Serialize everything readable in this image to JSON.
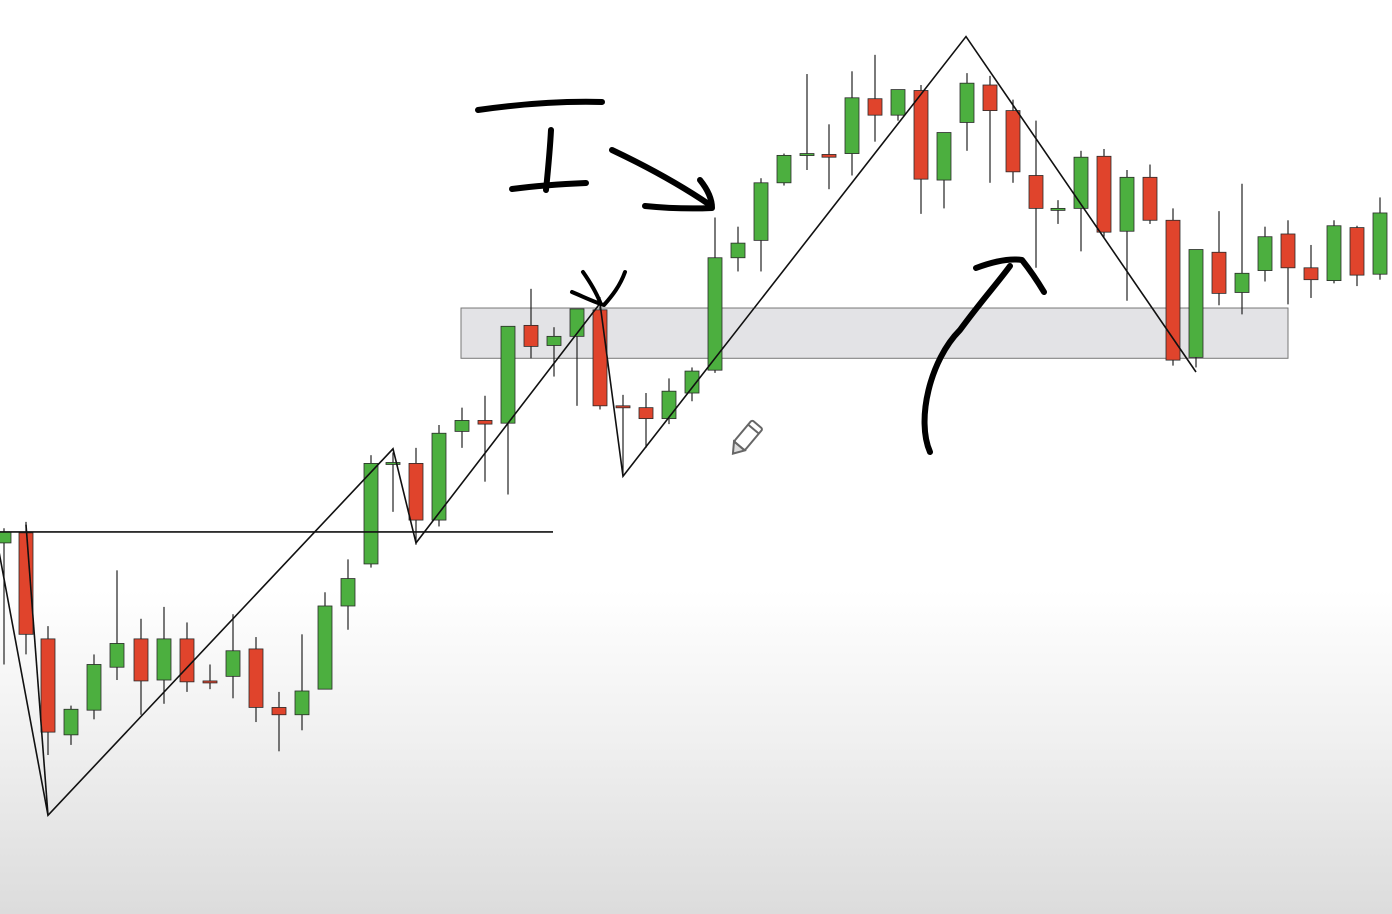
{
  "chart_data": {
    "type": "candlestick",
    "title": "",
    "xlabel": "",
    "ylabel": "",
    "price_scale_visible": false,
    "grid": false,
    "legend": "none",
    "ylim": [
      0,
      100
    ],
    "colors": {
      "bullish": "#4caf3f",
      "bearish": "#e0442c",
      "wick": "#222222",
      "zone_fill": "#e3e3e6",
      "line": "#111111",
      "ink": "#000000"
    },
    "candles": [
      {
        "x": 4,
        "o": 40.6,
        "h": 42.2,
        "l": 27.3,
        "c": 41.8
      },
      {
        "x": 26,
        "o": 41.7,
        "h": 42.9,
        "l": 28.4,
        "c": 30.6
      },
      {
        "x": 48,
        "o": 30.1,
        "h": 31.5,
        "l": 17.4,
        "c": 19.9
      },
      {
        "x": 71,
        "o": 19.6,
        "h": 22.8,
        "l": 18.5,
        "c": 22.4
      },
      {
        "x": 94,
        "o": 22.3,
        "h": 28.4,
        "l": 21.3,
        "c": 27.3
      },
      {
        "x": 117,
        "o": 27.0,
        "h": 37.6,
        "l": 25.6,
        "c": 29.6
      },
      {
        "x": 141,
        "o": 30.1,
        "h": 32.3,
        "l": 21.8,
        "c": 25.5
      },
      {
        "x": 164,
        "o": 25.6,
        "h": 33.6,
        "l": 23.0,
        "c": 30.1
      },
      {
        "x": 187,
        "o": 30.1,
        "h": 31.9,
        "l": 24.3,
        "c": 25.4
      },
      {
        "x": 210,
        "o": 25.5,
        "h": 27.3,
        "l": 24.6,
        "c": 25.3
      },
      {
        "x": 233,
        "o": 26.0,
        "h": 32.8,
        "l": 23.6,
        "c": 28.8
      },
      {
        "x": 256,
        "o": 29.0,
        "h": 30.3,
        "l": 21.0,
        "c": 22.6
      },
      {
        "x": 279,
        "o": 22.6,
        "h": 24.3,
        "l": 17.8,
        "c": 21.8
      },
      {
        "x": 302,
        "o": 21.8,
        "h": 30.6,
        "l": 20.1,
        "c": 24.4
      },
      {
        "x": 325,
        "o": 24.6,
        "h": 35.2,
        "l": 24.6,
        "c": 33.7
      },
      {
        "x": 348,
        "o": 33.7,
        "h": 38.8,
        "l": 31.1,
        "c": 36.7
      },
      {
        "x": 371,
        "o": 38.3,
        "h": 50.2,
        "l": 37.9,
        "c": 49.3
      },
      {
        "x": 393,
        "o": 49.2,
        "h": 50.5,
        "l": 44.0,
        "c": 49.4
      },
      {
        "x": 416,
        "o": 49.3,
        "h": 51.0,
        "l": 40.4,
        "c": 43.1
      },
      {
        "x": 439,
        "o": 43.1,
        "h": 53.5,
        "l": 42.4,
        "c": 52.6
      },
      {
        "x": 462,
        "o": 52.8,
        "h": 55.4,
        "l": 51.0,
        "c": 54.0
      },
      {
        "x": 485,
        "o": 54.0,
        "h": 56.7,
        "l": 47.3,
        "c": 53.6
      },
      {
        "x": 508,
        "o": 53.7,
        "h": 64.3,
        "l": 45.9,
        "c": 64.3
      },
      {
        "x": 531,
        "o": 64.4,
        "h": 68.4,
        "l": 60.8,
        "c": 62.1
      },
      {
        "x": 554,
        "o": 62.2,
        "h": 64.2,
        "l": 58.8,
        "c": 63.2
      },
      {
        "x": 577,
        "o": 63.2,
        "h": 66.2,
        "l": 55.6,
        "c": 66.2
      },
      {
        "x": 600,
        "o": 66.1,
        "h": 67.5,
        "l": 55.2,
        "c": 55.6
      },
      {
        "x": 623,
        "o": 55.6,
        "h": 56.8,
        "l": 47.9,
        "c": 55.5
      },
      {
        "x": 646,
        "o": 55.4,
        "h": 57.0,
        "l": 51.0,
        "c": 54.2
      },
      {
        "x": 669,
        "o": 54.2,
        "h": 58.6,
        "l": 53.6,
        "c": 57.2
      },
      {
        "x": 692,
        "o": 57.0,
        "h": 59.8,
        "l": 56.1,
        "c": 59.4
      },
      {
        "x": 715,
        "o": 59.5,
        "h": 76.2,
        "l": 59.2,
        "c": 71.8
      },
      {
        "x": 738,
        "o": 71.8,
        "h": 75.2,
        "l": 70.3,
        "c": 73.4
      },
      {
        "x": 761,
        "o": 73.7,
        "h": 80.5,
        "l": 70.3,
        "c": 80.0
      },
      {
        "x": 784,
        "o": 80.0,
        "h": 83.2,
        "l": 79.7,
        "c": 83.0
      },
      {
        "x": 807,
        "o": 83.1,
        "h": 91.9,
        "l": 81.4,
        "c": 83.2
      },
      {
        "x": 829,
        "o": 83.1,
        "h": 86.4,
        "l": 79.3,
        "c": 82.8
      },
      {
        "x": 852,
        "o": 83.2,
        "h": 92.2,
        "l": 80.8,
        "c": 89.3
      },
      {
        "x": 875,
        "o": 89.2,
        "h": 94.0,
        "l": 84.5,
        "c": 87.4
      },
      {
        "x": 898,
        "o": 87.4,
        "h": 90.1,
        "l": 86.8,
        "c": 90.2
      },
      {
        "x": 921,
        "o": 90.1,
        "h": 90.7,
        "l": 76.6,
        "c": 80.4
      },
      {
        "x": 944,
        "o": 80.3,
        "h": 84.8,
        "l": 77.2,
        "c": 85.5
      },
      {
        "x": 967,
        "o": 86.6,
        "h": 92.0,
        "l": 83.5,
        "c": 90.9
      },
      {
        "x": 990,
        "o": 90.7,
        "h": 91.7,
        "l": 80.0,
        "c": 87.9
      },
      {
        "x": 1013,
        "o": 87.9,
        "h": 89.1,
        "l": 80.0,
        "c": 81.2
      },
      {
        "x": 1036,
        "o": 80.8,
        "h": 86.8,
        "l": 70.7,
        "c": 77.2
      },
      {
        "x": 1058,
        "o": 77.1,
        "h": 78.1,
        "l": 75.5,
        "c": 77.2
      },
      {
        "x": 1081,
        "o": 77.2,
        "h": 83.5,
        "l": 72.5,
        "c": 82.8
      },
      {
        "x": 1104,
        "o": 82.9,
        "h": 83.7,
        "l": 74.1,
        "c": 74.6
      },
      {
        "x": 1127,
        "o": 74.7,
        "h": 81.4,
        "l": 67.1,
        "c": 80.6
      },
      {
        "x": 1150,
        "o": 80.6,
        "h": 82.0,
        "l": 75.5,
        "c": 75.9
      },
      {
        "x": 1173,
        "o": 75.9,
        "h": 77.2,
        "l": 60.0,
        "c": 60.6
      },
      {
        "x": 1196,
        "o": 60.9,
        "h": 72.7,
        "l": 59.8,
        "c": 72.7
      },
      {
        "x": 1219,
        "o": 72.4,
        "h": 76.9,
        "l": 66.6,
        "c": 67.9
      },
      {
        "x": 1242,
        "o": 68.0,
        "h": 79.9,
        "l": 65.6,
        "c": 70.1
      },
      {
        "x": 1265,
        "o": 70.4,
        "h": 75.2,
        "l": 69.2,
        "c": 74.1
      },
      {
        "x": 1288,
        "o": 74.4,
        "h": 75.9,
        "l": 66.7,
        "c": 70.7
      },
      {
        "x": 1311,
        "o": 70.7,
        "h": 73.2,
        "l": 67.4,
        "c": 69.4
      },
      {
        "x": 1334,
        "o": 69.3,
        "h": 75.9,
        "l": 69.0,
        "c": 75.3
      },
      {
        "x": 1357,
        "o": 75.1,
        "h": 75.3,
        "l": 68.7,
        "c": 69.9
      },
      {
        "x": 1380,
        "o": 70.0,
        "h": 78.4,
        "l": 69.4,
        "c": 76.7
      }
    ],
    "zigzag": [
      [
        -4,
        41.4
      ],
      [
        48,
        10.8
      ],
      [
        393,
        50.9
      ],
      [
        416,
        40.6
      ],
      [
        600,
        66.8
      ],
      [
        623,
        47.9
      ],
      [
        966,
        96.0
      ],
      [
        1196,
        59.3
      ]
    ],
    "zigzag_left": [
      [
        26,
        42.6
      ],
      [
        48,
        10.8
      ]
    ],
    "horizontal_level": {
      "y": 41.8,
      "x_start": 0,
      "x_end": 553
    },
    "zone": {
      "y_low": 60.8,
      "y_high": 66.3,
      "x_start": 461,
      "x_end": 1288
    }
  },
  "annotations": {
    "handwritten_label": "I",
    "pencil_cursor_icon": "pencil-cursor-icon"
  }
}
